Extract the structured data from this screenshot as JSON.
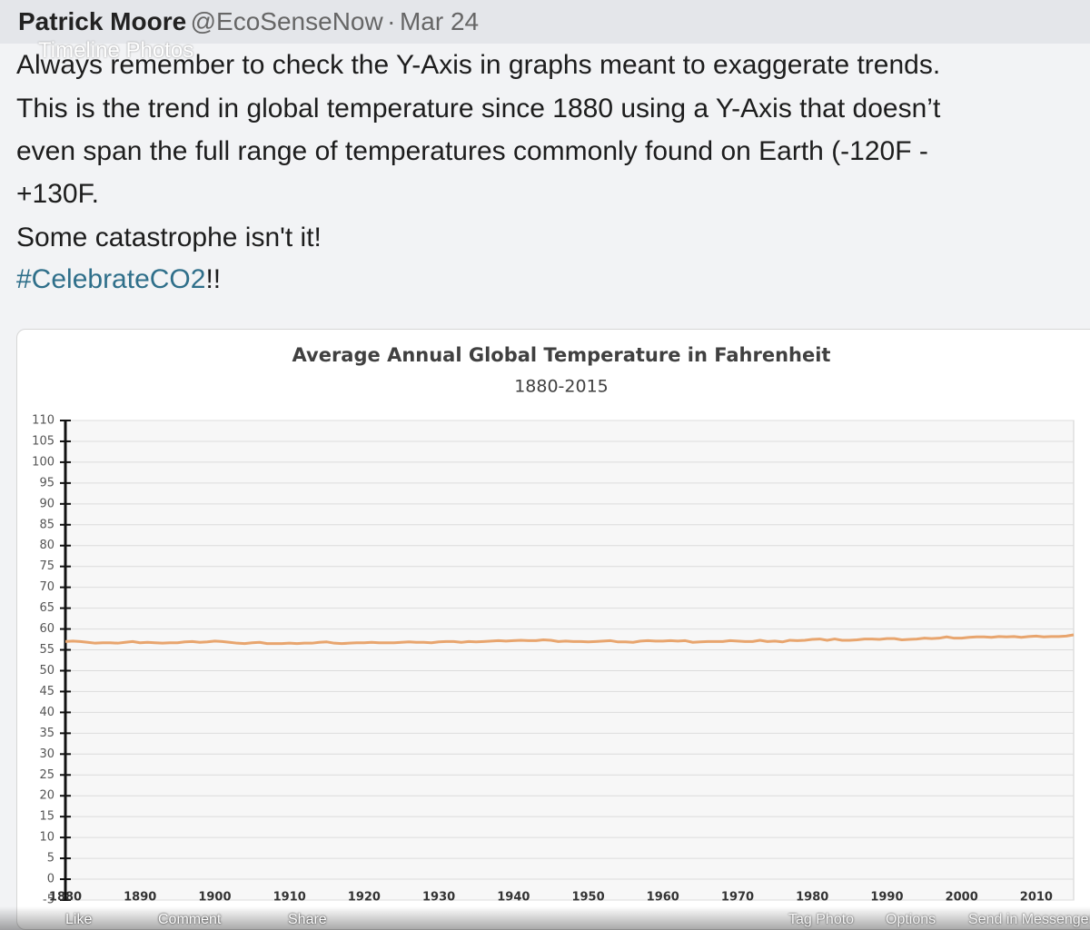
{
  "header": {
    "name": "Patrick Moore",
    "handle": "@EcoSenseNow",
    "separator": "·",
    "date": "Mar 24",
    "overlay": "Timeline Photos"
  },
  "post": {
    "lines": [
      "Always remember to check the Y-Axis in graphs meant to exaggerate trends.",
      "This is the trend in global temperature since 1880 using a Y-Axis that doesn’t",
      "even span the full range of temperatures commonly found on Earth (-120F -",
      "+130F.",
      "Some catastrophe isn't it!"
    ],
    "hashtag": "#CelebrateCO2",
    "hashtag_suffix": "!!"
  },
  "chart_data": {
    "type": "line",
    "title": "Average Annual Global Temperature in Fahrenheit",
    "subtitle": "1880-2015",
    "color": "#e8a56e",
    "grid": true,
    "x": [
      1880,
      1881,
      1882,
      1883,
      1884,
      1885,
      1886,
      1887,
      1888,
      1889,
      1890,
      1891,
      1892,
      1893,
      1894,
      1895,
      1896,
      1897,
      1898,
      1899,
      1900,
      1901,
      1902,
      1903,
      1904,
      1905,
      1906,
      1907,
      1908,
      1909,
      1910,
      1911,
      1912,
      1913,
      1914,
      1915,
      1916,
      1917,
      1918,
      1919,
      1920,
      1921,
      1922,
      1923,
      1924,
      1925,
      1926,
      1927,
      1928,
      1929,
      1930,
      1931,
      1932,
      1933,
      1934,
      1935,
      1936,
      1937,
      1938,
      1939,
      1940,
      1941,
      1942,
      1943,
      1944,
      1945,
      1946,
      1947,
      1948,
      1949,
      1950,
      1951,
      1952,
      1953,
      1954,
      1955,
      1956,
      1957,
      1958,
      1959,
      1960,
      1961,
      1962,
      1963,
      1964,
      1965,
      1966,
      1967,
      1968,
      1969,
      1970,
      1971,
      1972,
      1973,
      1974,
      1975,
      1976,
      1977,
      1978,
      1979,
      1980,
      1981,
      1982,
      1983,
      1984,
      1985,
      1986,
      1987,
      1988,
      1989,
      1990,
      1991,
      1992,
      1993,
      1994,
      1995,
      1996,
      1997,
      1998,
      1999,
      2000,
      2001,
      2002,
      2003,
      2004,
      2005,
      2006,
      2007,
      2008,
      2009,
      2010,
      2011,
      2012,
      2013,
      2014,
      2015
    ],
    "values": [
      57.0,
      57.1,
      57.0,
      56.8,
      56.6,
      56.7,
      56.7,
      56.6,
      56.8,
      57.0,
      56.7,
      56.8,
      56.7,
      56.6,
      56.7,
      56.7,
      56.9,
      57.0,
      56.8,
      56.9,
      57.1,
      57.0,
      56.8,
      56.6,
      56.5,
      56.7,
      56.8,
      56.5,
      56.5,
      56.5,
      56.6,
      56.5,
      56.6,
      56.6,
      56.8,
      56.9,
      56.6,
      56.5,
      56.6,
      56.7,
      56.7,
      56.8,
      56.7,
      56.7,
      56.7,
      56.8,
      56.9,
      56.8,
      56.8,
      56.7,
      56.9,
      57.0,
      57.0,
      56.8,
      57.0,
      56.9,
      57.0,
      57.1,
      57.2,
      57.1,
      57.2,
      57.3,
      57.2,
      57.2,
      57.4,
      57.3,
      57.0,
      57.1,
      57.0,
      57.0,
      56.9,
      57.0,
      57.1,
      57.2,
      56.9,
      56.9,
      56.8,
      57.1,
      57.2,
      57.1,
      57.1,
      57.2,
      57.1,
      57.2,
      56.8,
      56.9,
      57.0,
      57.0,
      57.0,
      57.2,
      57.1,
      57.0,
      57.0,
      57.3,
      57.0,
      57.1,
      56.9,
      57.3,
      57.2,
      57.3,
      57.5,
      57.6,
      57.3,
      57.6,
      57.3,
      57.3,
      57.4,
      57.6,
      57.6,
      57.5,
      57.7,
      57.7,
      57.4,
      57.5,
      57.6,
      57.8,
      57.7,
      57.8,
      58.1,
      57.8,
      57.8,
      58.0,
      58.1,
      58.1,
      58.0,
      58.2,
      58.1,
      58.2,
      58.0,
      58.2,
      58.3,
      58.1,
      58.2,
      58.2,
      58.3,
      58.6
    ],
    "xlim": [
      1880,
      2015
    ],
    "xticks": [
      1880,
      1890,
      1900,
      1910,
      1920,
      1930,
      1940,
      1950,
      1960,
      1970,
      1980,
      1990,
      2000,
      2010
    ],
    "ylim": [
      -5,
      110
    ],
    "yticks": [
      -5,
      0,
      5,
      10,
      15,
      20,
      25,
      30,
      35,
      40,
      45,
      50,
      55,
      60,
      65,
      70,
      75,
      80,
      85,
      90,
      95,
      100,
      105,
      110
    ]
  },
  "actions": {
    "left": [
      "Like",
      "Comment",
      "Share"
    ],
    "right": [
      "Tag Photo",
      "Options",
      "Send in Messenger"
    ]
  }
}
